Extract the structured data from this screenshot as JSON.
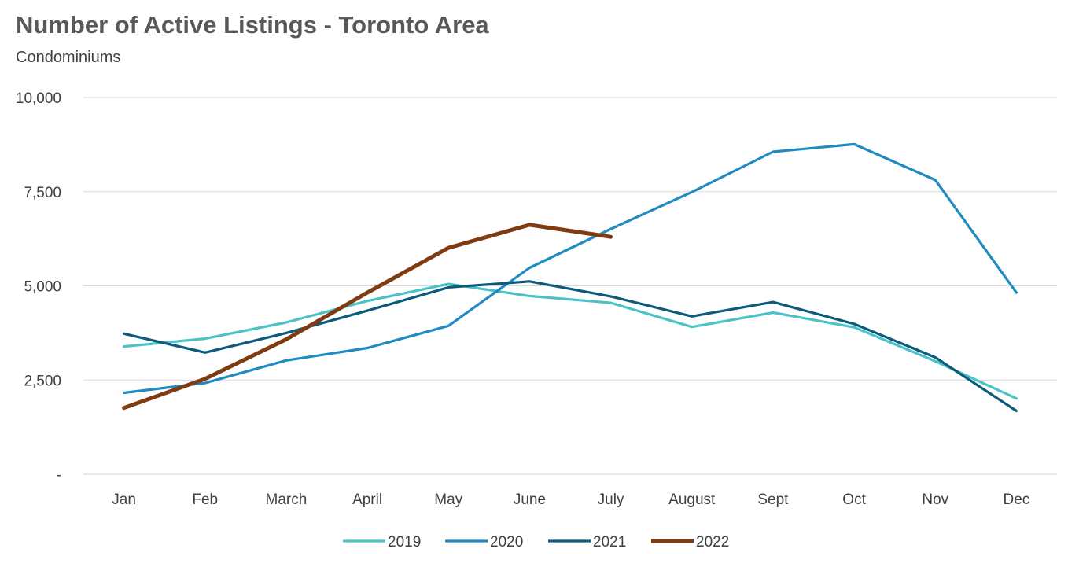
{
  "chart_data": {
    "type": "line",
    "title": "Number of Active Listings - Toronto Area",
    "subtitle": "Condominiums",
    "xlabel": "",
    "ylabel": "",
    "categories": [
      "Jan",
      "Feb",
      "March",
      "April",
      "May",
      "June",
      "July",
      "August",
      "Sept",
      "Oct",
      "Nov",
      "Dec"
    ],
    "ylim": [
      0,
      10000
    ],
    "yticks": [
      0,
      2500,
      5000,
      7500,
      10000
    ],
    "ytick_labels": [
      "-",
      "2,500",
      "5,000",
      "7,500",
      "10,000"
    ],
    "grid": true,
    "legend_position": "bottom",
    "series": [
      {
        "name": "2019",
        "color": "#4bc3c6",
        "values": [
          3390,
          3600,
          4030,
          4600,
          5050,
          4730,
          4550,
          3910,
          4290,
          3900,
          3000,
          2010
        ]
      },
      {
        "name": "2020",
        "color": "#1f8bc0",
        "values": [
          2160,
          2420,
          3020,
          3350,
          3940,
          5480,
          6510,
          7490,
          8560,
          8760,
          7810,
          4820
        ]
      },
      {
        "name": "2021",
        "color": "#0c5a7c",
        "values": [
          3730,
          3230,
          3750,
          4340,
          4960,
          5120,
          4720,
          4190,
          4570,
          3990,
          3100,
          1680
        ]
      },
      {
        "name": "2022",
        "color": "#7f3b12",
        "values": [
          1760,
          2530,
          3580,
          4820,
          6010,
          6620,
          6300,
          null,
          null,
          null,
          null,
          null
        ]
      }
    ]
  }
}
